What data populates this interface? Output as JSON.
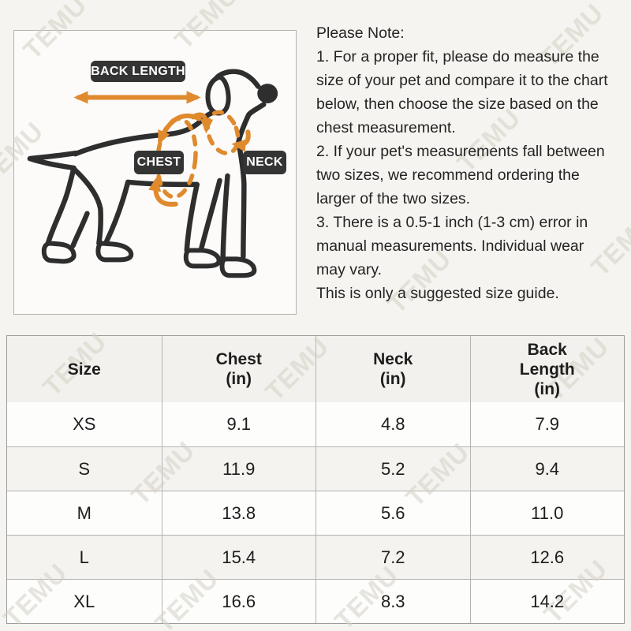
{
  "watermark": {
    "text": "TEMU"
  },
  "diagram": {
    "back_length_label": "BACK LENGTH",
    "chest_label": "CHEST",
    "neck_label": "NECK"
  },
  "notes": {
    "title": "Please Note:",
    "lines": [
      "1. For a proper fit, please do measure the",
      "size of your pet and compare it to the chart",
      "below, then choose the size based on the",
      "chest measurement.",
      "2. If your pet's measurements fall between",
      "two sizes, we recommend ordering the",
      "larger of the two sizes.",
      "3. There is a 0.5-1 inch (1-3 cm) error in",
      "manual measurements. Individual wear",
      "may vary.",
      "This is only a suggested size guide."
    ]
  },
  "table": {
    "headers": [
      [
        "Size"
      ],
      [
        "Chest",
        "(in)"
      ],
      [
        "Neck",
        "(in)"
      ],
      [
        "Back",
        "Length",
        "(in)"
      ]
    ],
    "rows": [
      [
        "XS",
        "9.1",
        "4.8",
        "7.9"
      ],
      [
        "S",
        "11.9",
        "5.2",
        "9.4"
      ],
      [
        "M",
        "13.8",
        "5.6",
        "11.0"
      ],
      [
        "L",
        "15.4",
        "7.2",
        "12.6"
      ],
      [
        "XL",
        "16.6",
        "8.3",
        "14.2"
      ]
    ]
  },
  "colors": {
    "accent_orange": "#e08a2e",
    "badge_bg": "#343434",
    "line_dark": "#2e2e2e",
    "watermark_gray": "#d5d1c6"
  }
}
